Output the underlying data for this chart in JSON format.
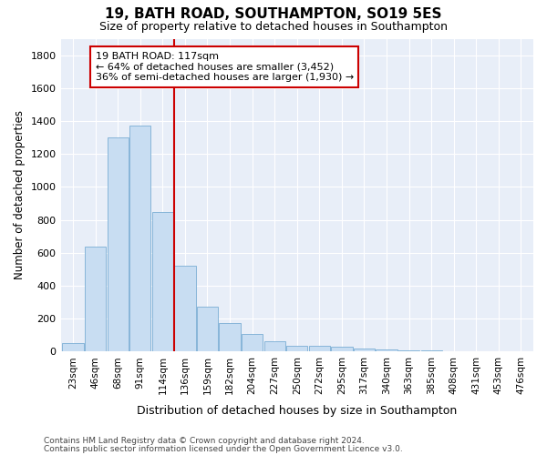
{
  "title": "19, BATH ROAD, SOUTHAMPTON, SO19 5ES",
  "subtitle": "Size of property relative to detached houses in Southampton",
  "xlabel": "Distribution of detached houses by size in Southampton",
  "ylabel": "Number of detached properties",
  "categories": [
    "23sqm",
    "46sqm",
    "68sqm",
    "91sqm",
    "114sqm",
    "136sqm",
    "159sqm",
    "182sqm",
    "204sqm",
    "227sqm",
    "250sqm",
    "272sqm",
    "295sqm",
    "317sqm",
    "340sqm",
    "363sqm",
    "385sqm",
    "408sqm",
    "431sqm",
    "453sqm",
    "476sqm"
  ],
  "values": [
    50,
    640,
    1300,
    1370,
    845,
    520,
    275,
    175,
    105,
    65,
    35,
    35,
    30,
    20,
    15,
    5,
    5,
    3,
    2,
    2,
    2
  ],
  "bar_color": "#c8ddf2",
  "bar_edge_color": "#7aaed4",
  "vline_color": "#cc0000",
  "vline_x_index": 4.5,
  "annotation_text": "19 BATH ROAD: 117sqm\n← 64% of detached houses are smaller (3,452)\n36% of semi-detached houses are larger (1,930) →",
  "annotation_box_color": "#ffffff",
  "annotation_box_edge": "#cc0000",
  "ylim": [
    0,
    1900
  ],
  "yticks": [
    0,
    200,
    400,
    600,
    800,
    1000,
    1200,
    1400,
    1600,
    1800
  ],
  "fig_background": "#ffffff",
  "plot_background": "#e8eef8",
  "grid_color": "#ffffff",
  "footnote1": "Contains HM Land Registry data © Crown copyright and database right 2024.",
  "footnote2": "Contains public sector information licensed under the Open Government Licence v3.0."
}
